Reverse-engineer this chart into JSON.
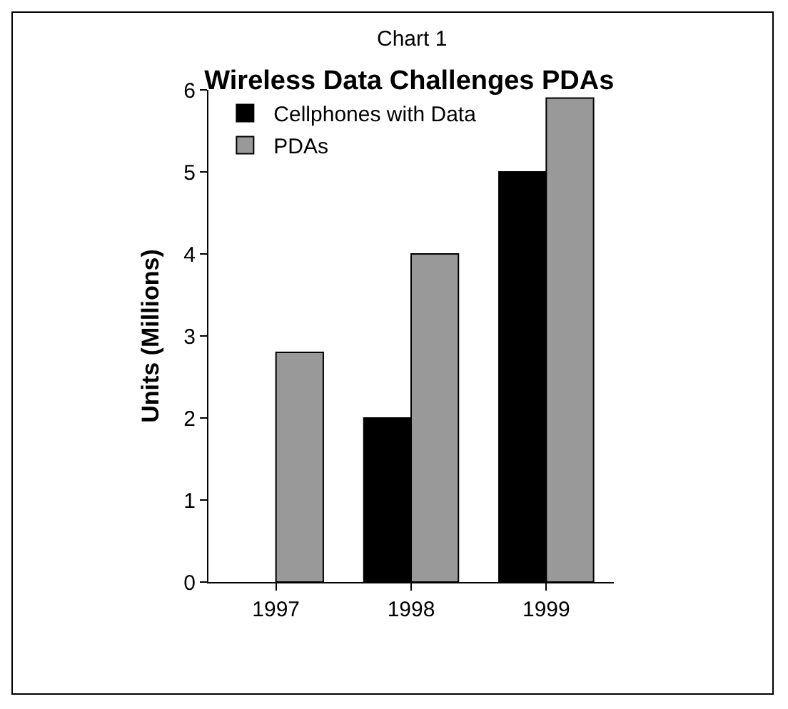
{
  "chart_data": {
    "type": "bar",
    "subtitle": "Chart 1",
    "title": "Wireless Data Challenges PDAs",
    "ylabel": "Units (Millions)",
    "categories": [
      "1997",
      "1998",
      "1999"
    ],
    "series": [
      {
        "name": "Cellphones with Data",
        "color": "#000000",
        "values": [
          null,
          2,
          5
        ]
      },
      {
        "name": "PDAs",
        "color": "#999999",
        "values": [
          2.8,
          4,
          5.9
        ]
      }
    ],
    "ylim": [
      0,
      6
    ],
    "yticks": [
      0,
      1,
      2,
      3,
      4,
      5,
      6
    ],
    "grid": false,
    "legend": "top left"
  }
}
